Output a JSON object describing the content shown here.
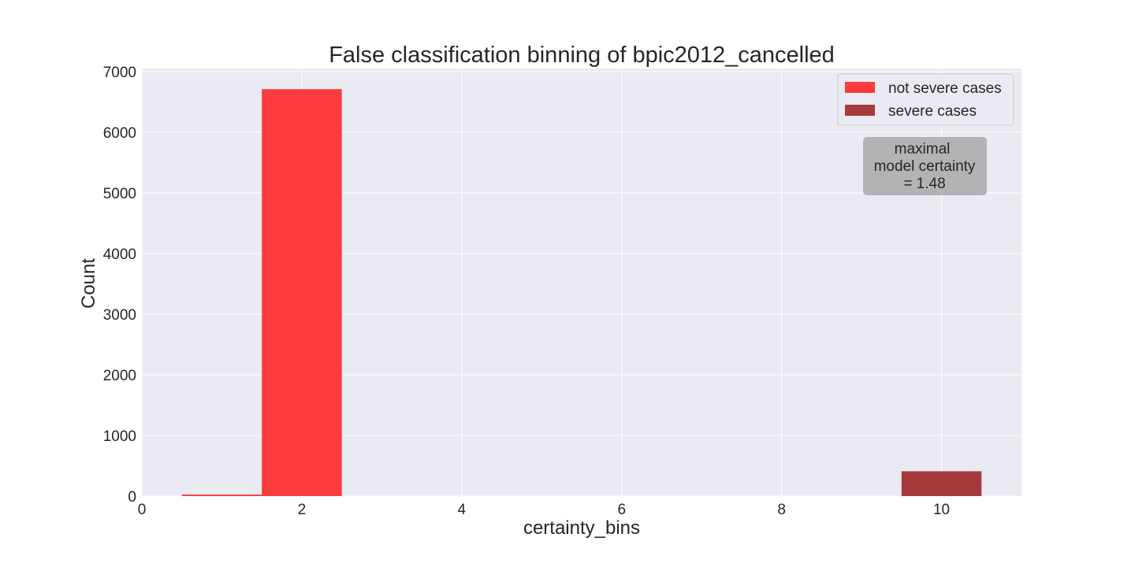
{
  "chart_data": {
    "type": "bar",
    "title": "False classification binning of bpic2012_cancelled",
    "xlabel": "certainty_bins",
    "ylabel": "Count",
    "xlim": [
      0,
      11
    ],
    "ylim": [
      0,
      7050
    ],
    "xticks": [
      0,
      2,
      4,
      6,
      8,
      10
    ],
    "yticks": [
      0,
      1000,
      2000,
      3000,
      4000,
      5000,
      6000,
      7000
    ],
    "grid": true,
    "legend_position": "top-right",
    "bar_width": 1,
    "series": [
      {
        "name": "not severe cases",
        "color": "#fb3b3e",
        "x": [
          1,
          2
        ],
        "values": [
          25,
          6710
        ]
      },
      {
        "name": "severe cases",
        "color": "#a5393c",
        "x": [
          10
        ],
        "values": [
          410
        ]
      }
    ],
    "annotation": {
      "lines": [
        "maximal",
        "model certainty",
        "= 1.48"
      ]
    },
    "colors": {
      "plot_background": "#eaeaf2",
      "grid": "#ffffff",
      "annotation_box": "#b3b3b5"
    }
  }
}
